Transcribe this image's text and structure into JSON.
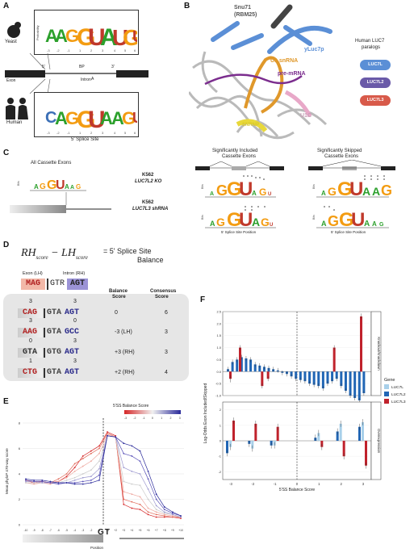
{
  "panels": {
    "a": "A",
    "b": "B",
    "c": "C",
    "d": "D",
    "e": "E",
    "f": "F"
  },
  "panelA": {
    "yeast_label": "Yeast",
    "human_label": "Human",
    "exon_label": "Exon",
    "intron_label": "Intron",
    "bp_label": "BP",
    "five_prime": "5'",
    "three_prime": "3'",
    "bp_a": "A",
    "ss_label": "5' Splice Site",
    "ylabel": "Probability",
    "yticks": [
      "1.00",
      "0.75",
      "0.50",
      "0.25",
      "0.00"
    ],
    "positions": [
      "-3",
      "-2",
      "-1",
      "1",
      "2",
      "3",
      "4",
      "5",
      "6"
    ],
    "yeast_logo": [
      "A",
      "A",
      "G",
      "G",
      "U",
      "A",
      "U",
      "G",
      "U"
    ],
    "human_logo": [
      "C",
      "A",
      "G",
      "G",
      "U",
      "A",
      "A",
      "G",
      "U"
    ]
  },
  "panelB": {
    "snu71": "Snu71",
    "rbm25": "(RBM25)",
    "yluc7p": "yLuc7p",
    "u1snrna": "U1 snRNA",
    "premrna": "pre-mRNA",
    "u1c": "U1C",
    "snrnp": "SNRNP",
    "paralogs_title": "Human LUC7",
    "paralogs_title2": "paralogs",
    "paralogs": [
      "LUC7L",
      "LUC7L2",
      "LUC7L3"
    ],
    "colors": {
      "luc7l": "#5b8fd6",
      "luc7l2": "#6a5aa8",
      "luc7l3": "#d85a4a"
    }
  },
  "panelC": {
    "all_label": "All Cassette Exons",
    "included_label": "Significantly Included",
    "included_label2": "Cassette Exons",
    "skipped_label": "Significantly Skipped",
    "skipped_label2": "Cassette Exons",
    "k562_1": "K562",
    "ko_1": "LUC7L2 KO",
    "k562_2": "K562",
    "ko_2": "LUC7L3 shRNA",
    "xaxis": "5' Splice Site Position",
    "bits": "Bits"
  },
  "panelD": {
    "formula_rh": "RH",
    "formula_lh": "LH",
    "formula_sub": "score",
    "formula_eq": "= 5' Splice Site",
    "formula_eq2": "Balance",
    "exon_lh": "Exon (LH)",
    "intron_rh": "Intron (RH)",
    "header_exon": "MAG",
    "header_gt": "GTR",
    "header_intron": "AGT",
    "col_balance": "Balance",
    "col_balance2": "Score",
    "col_consensus": "Consensus",
    "col_consensus2": "Score",
    "rows": [
      {
        "lh": "3",
        "rh": "3",
        "exon": "CAG",
        "gt": "GTA",
        "intron": "AGT",
        "balance": "0",
        "consensus": "6"
      },
      {
        "lh": "3",
        "rh": "0",
        "exon": "AAG",
        "gt": "GTA",
        "intron": "GCC",
        "balance": "-3 (LH)",
        "consensus": "3"
      },
      {
        "lh": "0",
        "rh": "3",
        "exon": "GTA",
        "gt": "GTG",
        "intron": "AGT",
        "balance": "+3 (RH)",
        "consensus": "3"
      },
      {
        "lh": "1",
        "rh": "3",
        "exon": "CTG",
        "gt": "GTA",
        "intron": "AGT",
        "balance": "+2 (RH)",
        "consensus": "4"
      }
    ]
  },
  "panelE": {
    "legend_title": "5'SS Balance Score",
    "legend_ticks": [
      "-3",
      "-2",
      "-1",
      "0",
      "1",
      "2",
      "3"
    ],
    "ylabel": "Mean phyloP 470-way score",
    "xlabel": "Position",
    "gt_label": "GT",
    "yticks": [
      "8",
      "6",
      "4",
      "2",
      "0"
    ],
    "xticks": [
      "-10",
      "-9",
      "-8",
      "-7",
      "-6",
      "-5",
      "-4",
      "-3",
      "-2",
      "-1",
      "+1",
      "+2",
      "+3",
      "+4",
      "+5",
      "+6",
      "+7",
      "+8",
      "+9",
      "+10"
    ]
  },
  "chart_data": {
    "type": "bar",
    "xlabel": "5'SS Balance Score",
    "ylabel": "Log-Odds Exon Included/Skipped",
    "facets": [
      "Knockout/Knockdown",
      "Overexpression"
    ],
    "legend_title": "Gene",
    "legend_position": "right",
    "series": [
      {
        "name": "LUC7L",
        "color": "#a8d0ea"
      },
      {
        "name": "LUC7L2",
        "color": "#2166b5"
      },
      {
        "name": "LUC7L3",
        "color": "#c0222c"
      }
    ],
    "x_ticks": [
      "-3",
      "-2",
      "-1",
      "0",
      "1",
      "2",
      "3"
    ],
    "y_ticks_top": [
      "2.5",
      "2.0",
      "1.5",
      "1.0",
      "0.5",
      "0.0",
      "-0.5",
      "-1.0"
    ],
    "y_ticks_bottom": [
      "2",
      "1",
      "0",
      "-1",
      "-2"
    ]
  }
}
